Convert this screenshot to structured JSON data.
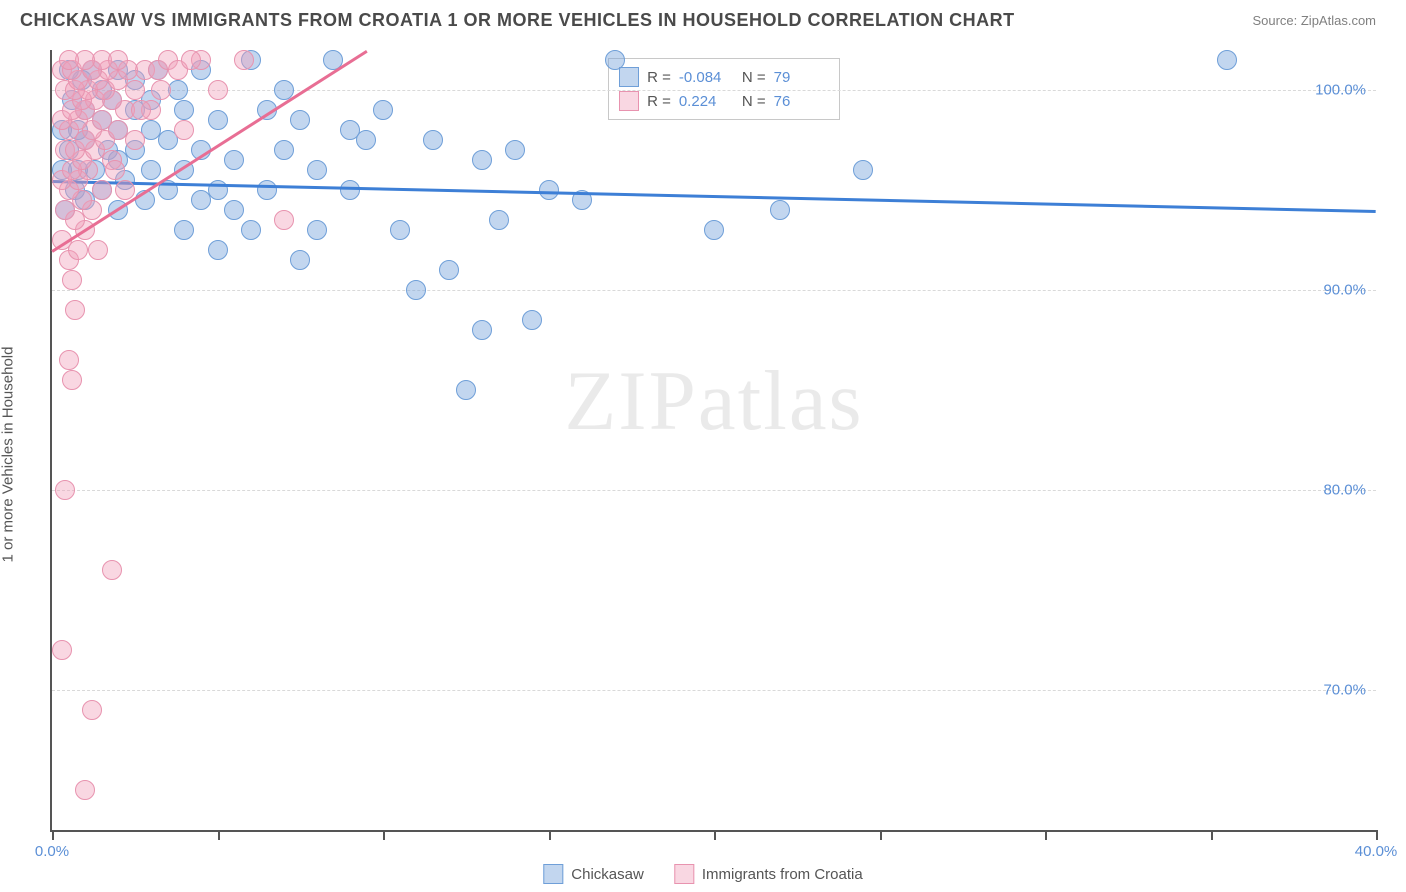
{
  "title": "CHICKASAW VS IMMIGRANTS FROM CROATIA 1 OR MORE VEHICLES IN HOUSEHOLD CORRELATION CHART",
  "source": "Source: ZipAtlas.com",
  "ylabel": "1 or more Vehicles in Household",
  "watermark_a": "ZIP",
  "watermark_b": "atlas",
  "colors": {
    "blue_fill": "rgba(120,165,220,0.45)",
    "blue_stroke": "#6f9fd8",
    "pink_fill": "rgba(240,160,185,0.42)",
    "pink_stroke": "#e893af",
    "blue_line": "#3d7fd6",
    "pink_line": "#e86e94",
    "grid": "#d9d9d9",
    "axis_text": "#5b8fd6"
  },
  "chart": {
    "type": "scatter",
    "xlim": [
      0,
      40
    ],
    "ylim": [
      63,
      102
    ],
    "xticks": [
      0,
      5,
      10,
      15,
      20,
      25,
      30,
      35,
      40
    ],
    "xtick_labels": {
      "0": "0.0%",
      "40": "40.0%"
    },
    "yticks": [
      70,
      80,
      90,
      100
    ],
    "ytick_labels": {
      "70": "70.0%",
      "80": "80.0%",
      "90": "90.0%",
      "100": "100.0%"
    },
    "point_radius": 10,
    "series": [
      {
        "name": "Chickasaw",
        "color_key": "blue",
        "R": "-0.084",
        "N": "79",
        "trend": {
          "x1": 0,
          "y1": 95.5,
          "x2": 40,
          "y2": 94.0
        },
        "points": [
          [
            35.5,
            101.5
          ],
          [
            24.5,
            96
          ],
          [
            22,
            94
          ],
          [
            20,
            93
          ],
          [
            17,
            101.5
          ],
          [
            16,
            94.5
          ],
          [
            15,
            95
          ],
          [
            14.5,
            88.5
          ],
          [
            14,
            97
          ],
          [
            13.5,
            93.5
          ],
          [
            13,
            88
          ],
          [
            12.5,
            85
          ],
          [
            12,
            91
          ],
          [
            13,
            96.5
          ],
          [
            11.5,
            97.5
          ],
          [
            11,
            90
          ],
          [
            10.5,
            93
          ],
          [
            10,
            99
          ],
          [
            9.5,
            97.5
          ],
          [
            9,
            98
          ],
          [
            9,
            95
          ],
          [
            8.5,
            101.5
          ],
          [
            8,
            96
          ],
          [
            8,
            93
          ],
          [
            7.5,
            98.5
          ],
          [
            7.5,
            91.5
          ],
          [
            7,
            100
          ],
          [
            7,
            97
          ],
          [
            6.5,
            95
          ],
          [
            6.5,
            99
          ],
          [
            6,
            93
          ],
          [
            6,
            101.5
          ],
          [
            5.5,
            96.5
          ],
          [
            5.5,
            94
          ],
          [
            5,
            98.5
          ],
          [
            5,
            95
          ],
          [
            5,
            92
          ],
          [
            4.5,
            101
          ],
          [
            4.5,
            97
          ],
          [
            4.5,
            94.5
          ],
          [
            4,
            99
          ],
          [
            4,
            96
          ],
          [
            4,
            93
          ],
          [
            3.8,
            100
          ],
          [
            3.5,
            97.5
          ],
          [
            3.5,
            95
          ],
          [
            3.2,
            101
          ],
          [
            3,
            98
          ],
          [
            3,
            99.5
          ],
          [
            3,
            96
          ],
          [
            2.8,
            94.5
          ],
          [
            2.5,
            100.5
          ],
          [
            2.5,
            97
          ],
          [
            2.5,
            99
          ],
          [
            2.2,
            95.5
          ],
          [
            2,
            98
          ],
          [
            2,
            101
          ],
          [
            2,
            96.5
          ],
          [
            2,
            94
          ],
          [
            1.8,
            99.5
          ],
          [
            1.7,
            97
          ],
          [
            1.5,
            100
          ],
          [
            1.5,
            95
          ],
          [
            1.5,
            98.5
          ],
          [
            1.3,
            96
          ],
          [
            1.2,
            101
          ],
          [
            1,
            97.5
          ],
          [
            1,
            99
          ],
          [
            1,
            94.5
          ],
          [
            0.9,
            100.5
          ],
          [
            0.8,
            96
          ],
          [
            0.8,
            98
          ],
          [
            0.7,
            95
          ],
          [
            0.6,
            99.5
          ],
          [
            0.5,
            97
          ],
          [
            0.5,
            101
          ],
          [
            0.4,
            94
          ],
          [
            0.3,
            98
          ],
          [
            0.3,
            96
          ]
        ]
      },
      {
        "name": "Immigants from Croatia",
        "label": "Immigrants from Croatia",
        "color_key": "pink",
        "R": "0.224",
        "N": "76",
        "trend": {
          "x1": 0,
          "y1": 92.0,
          "x2": 9.5,
          "y2": 102
        },
        "points": [
          [
            1.0,
            65
          ],
          [
            1.2,
            69
          ],
          [
            0.3,
            72
          ],
          [
            1.8,
            76
          ],
          [
            0.4,
            80
          ],
          [
            0.6,
            85.5
          ],
          [
            0.5,
            86.5
          ],
          [
            0.7,
            89
          ],
          [
            0.6,
            90.5
          ],
          [
            0.5,
            91.5
          ],
          [
            0.8,
            92
          ],
          [
            0.3,
            92.5
          ],
          [
            1.0,
            93
          ],
          [
            0.7,
            93.5
          ],
          [
            0.4,
            94
          ],
          [
            1.2,
            94
          ],
          [
            0.9,
            94.5
          ],
          [
            0.5,
            95
          ],
          [
            1.5,
            95
          ],
          [
            0.8,
            95.5
          ],
          [
            0.3,
            95.5
          ],
          [
            1.1,
            96
          ],
          [
            0.6,
            96
          ],
          [
            1.8,
            96.5
          ],
          [
            0.9,
            96.5
          ],
          [
            0.4,
            97
          ],
          [
            1.3,
            97
          ],
          [
            0.7,
            97
          ],
          [
            1.6,
            97.5
          ],
          [
            1.0,
            97.5
          ],
          [
            0.5,
            98
          ],
          [
            2.0,
            98
          ],
          [
            1.2,
            98
          ],
          [
            0.8,
            98.5
          ],
          [
            1.5,
            98.5
          ],
          [
            0.3,
            98.5
          ],
          [
            2.2,
            99
          ],
          [
            1.0,
            99
          ],
          [
            0.6,
            99
          ],
          [
            1.8,
            99.5
          ],
          [
            1.3,
            99.5
          ],
          [
            0.9,
            99.5
          ],
          [
            0.4,
            100
          ],
          [
            2.5,
            100
          ],
          [
            1.6,
            100
          ],
          [
            1.1,
            100
          ],
          [
            0.7,
            100
          ],
          [
            2.0,
            100.5
          ],
          [
            1.4,
            100.5
          ],
          [
            0.8,
            100.5
          ],
          [
            0.3,
            101
          ],
          [
            2.8,
            101
          ],
          [
            1.7,
            101
          ],
          [
            1.2,
            101
          ],
          [
            0.6,
            101
          ],
          [
            3.2,
            101
          ],
          [
            2.3,
            101
          ],
          [
            1.5,
            101.5
          ],
          [
            4.5,
            101.5
          ],
          [
            1.0,
            101.5
          ],
          [
            0.5,
            101.5
          ],
          [
            3.5,
            101.5
          ],
          [
            2.0,
            101.5
          ],
          [
            5.8,
            101.5
          ],
          [
            7.0,
            93.5
          ],
          [
            4.0,
            98
          ],
          [
            3.0,
            99
          ],
          [
            2.5,
            97.5
          ],
          [
            5.0,
            100
          ],
          [
            3.8,
            101
          ],
          [
            2.2,
            95
          ],
          [
            1.9,
            96
          ],
          [
            4.2,
            101.5
          ],
          [
            3.3,
            100
          ],
          [
            2.7,
            99
          ],
          [
            1.4,
            92
          ]
        ]
      }
    ]
  },
  "legend": {
    "series1": "Chickasaw",
    "series2": "Immigrants from Croatia"
  }
}
